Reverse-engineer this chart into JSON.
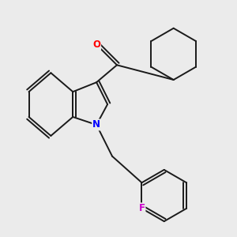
{
  "background_color": "#ebebeb",
  "bond_color": "#1a1a1a",
  "atom_colors": {
    "O": "#ff0000",
    "N": "#0000ff",
    "F": "#cc00cc"
  },
  "figsize": [
    3.0,
    3.0
  ],
  "dpi": 100,
  "lw": 1.4
}
